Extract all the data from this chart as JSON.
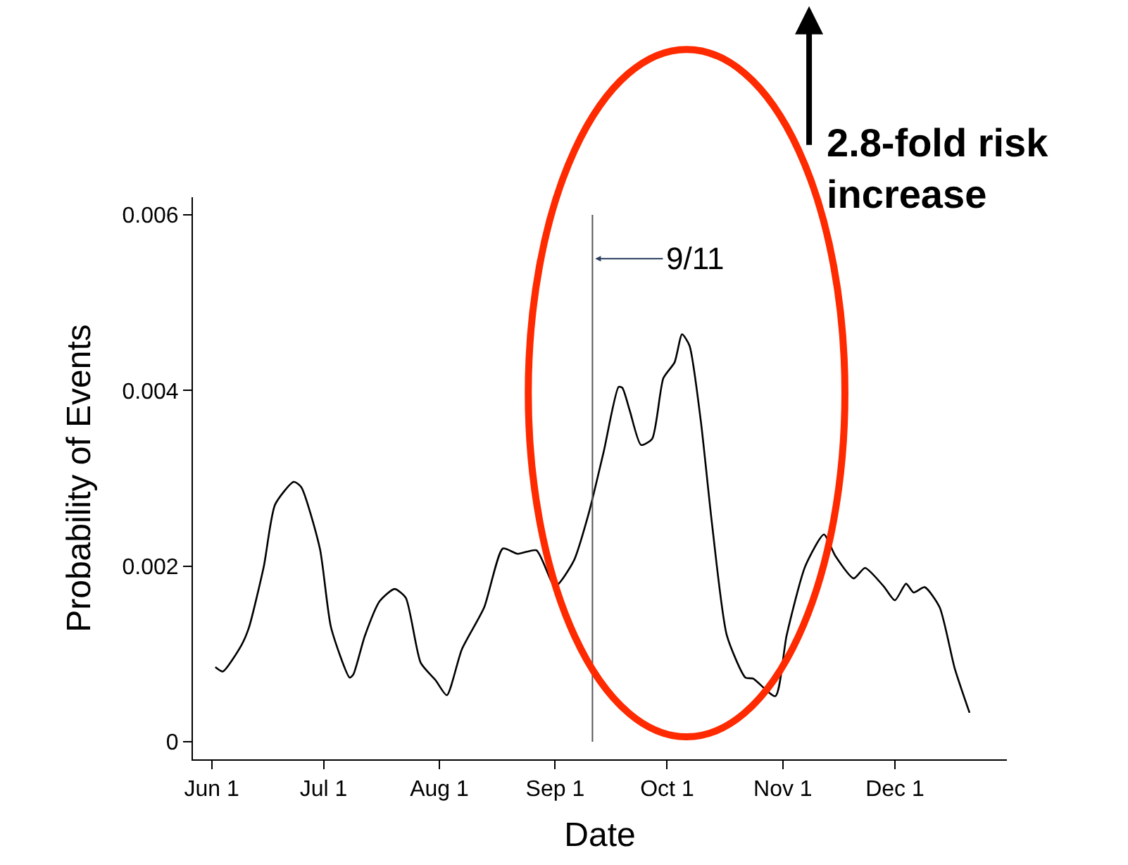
{
  "chart_data": {
    "type": "line",
    "xlabel": "Date",
    "ylabel": "Probability of Events",
    "x": [
      "--06-02",
      "--06-04",
      "--06-09",
      "--06-11",
      "--06-15",
      "--06-18",
      "--06-23",
      "--06-25",
      "--06-30",
      "--07-03",
      "--07-08",
      "--07-09",
      "--07-12",
      "--07-16",
      "--07-20",
      "--07-23",
      "--07-27",
      "--07-31",
      "--08-03",
      "--08-07",
      "--08-13",
      "--08-18",
      "--08-22",
      "--08-27",
      "--09-01",
      "--09-06",
      "--09-10",
      "--09-14",
      "--09-18",
      "--09-19",
      "--09-21",
      "--09-24",
      "--09-27",
      "--09-30",
      "--10-03",
      "--10-05",
      "--10-07",
      "--10-10",
      "--10-13",
      "--10-17",
      "--10-22",
      "--10-24",
      "--10-30",
      "--11-02",
      "--11-07",
      "--11-12",
      "--11-15",
      "--11-20",
      "--11-23",
      "--11-28",
      "--12-01",
      "--12-04",
      "--12-06",
      "--12-09",
      "--12-13",
      "--12-17",
      "--12-21"
    ],
    "series": [
      {
        "color": "#000000",
        "values": [
          0.00085,
          0.0008,
          0.0011,
          0.0013,
          0.002,
          0.0027,
          0.00296,
          0.0029,
          0.0022,
          0.0013,
          0.00073,
          0.00077,
          0.0012,
          0.0016,
          0.00174,
          0.00164,
          0.0009,
          0.0007,
          0.00053,
          0.00105,
          0.00153,
          0.0022,
          0.00214,
          0.00218,
          0.00177,
          0.00206,
          0.0026,
          0.0033,
          0.00404,
          0.00403,
          0.00377,
          0.00338,
          0.00345,
          0.00414,
          0.00432,
          0.00464,
          0.00451,
          0.00366,
          0.00249,
          0.00121,
          0.00073,
          0.00072,
          0.00052,
          0.00121,
          0.002,
          0.00236,
          0.00212,
          0.00186,
          0.00198,
          0.00177,
          0.00161,
          0.0018,
          0.0017,
          0.00176,
          0.00153,
          0.00084,
          0.00033
        ]
      }
    ],
    "xlim": [
      "--05-27",
      "--12-31"
    ],
    "xticks": [
      {
        "value": "--06-01",
        "label": "Jun 1"
      },
      {
        "value": "--07-01",
        "label": "Jul 1"
      },
      {
        "value": "--08-01",
        "label": "Aug 1"
      },
      {
        "value": "--09-01",
        "label": "Sep 1"
      },
      {
        "value": "--10-01",
        "label": "Oct 1"
      },
      {
        "value": "--11-01",
        "label": "Nov 1"
      },
      {
        "value": "--12-01",
        "label": "Dec 1"
      }
    ],
    "ylim": [
      -0.0002,
      0.0062
    ],
    "yticks": [
      0,
      0.002,
      0.004,
      0.006
    ],
    "ref_lines": [
      {
        "axis": "x",
        "value": "--09-11",
        "label": "9/11",
        "color": "#555555"
      }
    ],
    "annotations": [
      "2.8-fold risk\nincrease"
    ],
    "marker": "none",
    "line_style": "solid"
  }
}
